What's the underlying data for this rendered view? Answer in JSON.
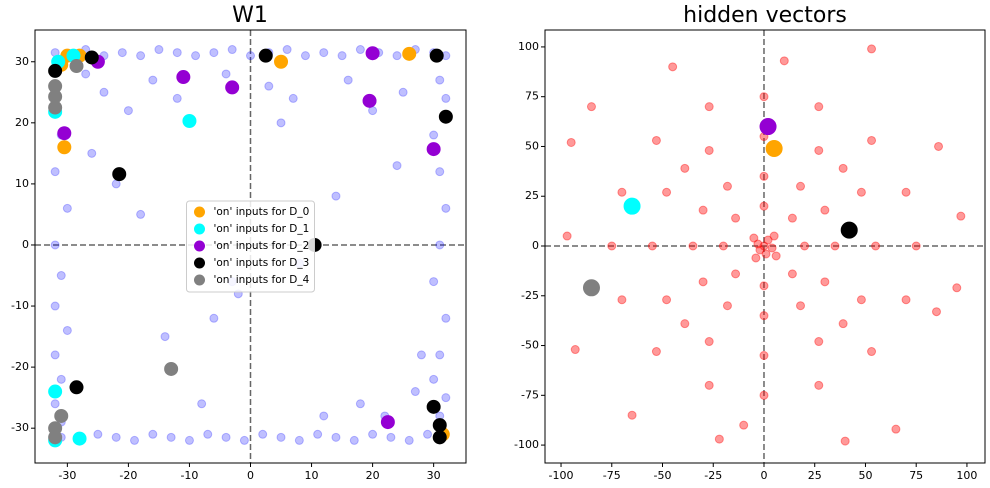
{
  "chart_data": [
    {
      "type": "scatter",
      "title": "W1",
      "xlim": [
        -35.3,
        35.3
      ],
      "ylim": [
        -35.7,
        35.2
      ],
      "xticks": [
        -30,
        -20,
        -10,
        0,
        10,
        20,
        30
      ],
      "yticks": [
        -30,
        -20,
        -10,
        0,
        10,
        20,
        30
      ],
      "zero_lines": true,
      "legend": "center",
      "series": [
        {
          "color": "#0000ff",
          "opacity": 0.25,
          "marker_size": 4,
          "x": [
            -32,
            -30,
            -27,
            -24,
            -21,
            -18,
            -15,
            -12,
            -9,
            -6,
            -3,
            0,
            3,
            6,
            9,
            12,
            15,
            18,
            21,
            24,
            27,
            30,
            32,
            -31,
            -28,
            -25,
            -22,
            -19,
            -16,
            -13,
            -10,
            -7,
            -4,
            -1,
            2,
            5,
            8,
            11,
            14,
            17,
            20,
            23,
            26,
            29,
            31,
            -32,
            -31,
            -32,
            -30,
            -32,
            -31,
            -32,
            -30,
            -32,
            -31,
            -32,
            -31,
            31,
            32,
            30,
            31,
            32,
            31,
            30,
            32,
            31,
            30,
            32,
            31,
            -27,
            -24,
            -20,
            -16,
            -12,
            -8,
            -4,
            -2,
            3,
            7,
            12,
            16,
            20,
            25,
            28,
            -26,
            -18,
            -6,
            8,
            14,
            22,
            27,
            -22,
            -14,
            -3,
            5,
            18,
            24
          ],
          "y": [
            31.5,
            31,
            32,
            31,
            31.5,
            31,
            32,
            31.5,
            31,
            31.5,
            32,
            31,
            31.5,
            32,
            31,
            31.5,
            31,
            32,
            31.5,
            31,
            32,
            31.5,
            31,
            -31.5,
            -32,
            -31,
            -31.5,
            -32,
            -31,
            -31.5,
            -32,
            -31,
            -31.5,
            -32,
            -31,
            -31.5,
            -32,
            -31,
            -31.5,
            -32,
            -31,
            -31.5,
            -32,
            -31,
            -31.5,
            25,
            18,
            12,
            6,
            0,
            -5,
            -10,
            -14,
            -18,
            -22,
            -26,
            -29,
            27,
            24,
            18,
            12,
            6,
            0,
            -6,
            -12,
            -18,
            -22,
            -25,
            -28,
            28,
            25,
            22,
            27,
            24,
            -26,
            28,
            -8,
            26,
            24,
            -28,
            27,
            22,
            25,
            -18,
            15,
            5,
            -12,
            -3,
            8,
            -28,
            -24,
            10,
            -15,
            -6,
            20,
            -26,
            13
          ]
        },
        {
          "name": "'on' inputs for D_0",
          "color": "#ffa500",
          "opacity": 1,
          "marker_size": 6.5,
          "x": [
            -30,
            -28,
            -31,
            -30.5,
            5,
            26,
            31.5
          ],
          "y": [
            31,
            31,
            29.5,
            16,
            30,
            31.3,
            -31
          ]
        },
        {
          "name": "'on' inputs for D_1",
          "color": "#00ffff",
          "opacity": 1,
          "marker_size": 6.5,
          "x": [
            -31.5,
            -29,
            -32,
            -10,
            -32,
            -28,
            -32
          ],
          "y": [
            30,
            31,
            21.8,
            20.3,
            -24,
            -31.7,
            -32
          ]
        },
        {
          "name": "'on' inputs for D_2",
          "color": "#9400d3",
          "opacity": 1,
          "marker_size": 6.5,
          "x": [
            -30.5,
            -25,
            -11,
            -3,
            20,
            19.5,
            30,
            22.5
          ],
          "y": [
            18.3,
            30,
            27.5,
            25.8,
            31.4,
            23.6,
            15.7,
            -29
          ]
        },
        {
          "name": "'on' inputs for D_3",
          "color": "#000000",
          "opacity": 1,
          "marker_size": 6.5,
          "x": [
            -32,
            -26,
            -21.5,
            2.5,
            10.5,
            30.5,
            32,
            -28.5,
            30,
            31,
            31
          ],
          "y": [
            28.5,
            30.7,
            11.6,
            31,
            0,
            31,
            21,
            -23.3,
            -26.5,
            -29.5,
            -31.5
          ]
        },
        {
          "name": "'on' inputs for D_4",
          "color": "#808080",
          "opacity": 1,
          "marker_size": 6.5,
          "x": [
            -28.5,
            -32,
            -32,
            -32,
            -13,
            -31,
            -32,
            -32
          ],
          "y": [
            29.3,
            26,
            24.3,
            22.5,
            -20.3,
            -28,
            -30,
            -31.5
          ]
        }
      ]
    },
    {
      "type": "scatter",
      "title": "hidden vectors",
      "xlim": [
        -107.9,
        108.9
      ],
      "ylim": [
        -109,
        108.5
      ],
      "xticks": [
        -100,
        -75,
        -50,
        -25,
        0,
        25,
        50,
        75,
        100
      ],
      "yticks": [
        -100,
        -75,
        -50,
        -25,
        0,
        25,
        50,
        75,
        100
      ],
      "zero_lines": true,
      "series": [
        {
          "color": "#ff0000",
          "opacity": 0.4,
          "marker_size": 4,
          "x": [
            0,
            2,
            -3,
            1,
            -2,
            4,
            -5,
            5,
            -4,
            6,
            20,
            14,
            0,
            -14,
            -20,
            -14,
            0,
            14,
            35,
            30,
            18,
            0,
            -18,
            -30,
            -35,
            -30,
            -18,
            0,
            18,
            30,
            55,
            48,
            27,
            0,
            -27,
            -48,
            -55,
            -48,
            -27,
            0,
            27,
            48,
            39,
            -39,
            -39,
            39,
            75,
            70,
            53,
            27,
            0,
            -27,
            -53,
            -70,
            -75,
            -70,
            -53,
            -27,
            0,
            27,
            53,
            70,
            97,
            95,
            86,
            53,
            -45,
            -95,
            -97,
            -93,
            -65,
            -22,
            40,
            65,
            85,
            -85,
            10,
            -10
          ],
          "y": [
            0,
            3,
            1,
            -4,
            -2,
            -1,
            4,
            5,
            -6,
            -5,
            0,
            14,
            20,
            14,
            0,
            -14,
            -20,
            -14,
            0,
            18,
            30,
            35,
            30,
            18,
            0,
            -18,
            -30,
            -35,
            -30,
            -18,
            0,
            27,
            48,
            55,
            48,
            27,
            0,
            -27,
            -48,
            -55,
            -48,
            -27,
            39,
            39,
            -39,
            -39,
            0,
            27,
            53,
            70,
            75,
            70,
            53,
            27,
            0,
            -27,
            -53,
            -70,
            -75,
            -70,
            -53,
            -27,
            15,
            -21,
            50,
            99,
            90,
            52,
            5,
            -52,
            -85,
            -97,
            -98,
            -92,
            -33,
            70,
            93,
            -90
          ]
        },
        {
          "color": "#ffa500",
          "opacity": 1,
          "marker_size": 8,
          "x": [
            5
          ],
          "y": [
            49
          ]
        },
        {
          "color": "#00ffff",
          "opacity": 1,
          "marker_size": 8,
          "x": [
            -65
          ],
          "y": [
            20
          ]
        },
        {
          "color": "#9400d3",
          "opacity": 1,
          "marker_size": 8,
          "x": [
            2
          ],
          "y": [
            60
          ]
        },
        {
          "color": "#000000",
          "opacity": 1,
          "marker_size": 8,
          "x": [
            42
          ],
          "y": [
            8
          ]
        },
        {
          "color": "#808080",
          "opacity": 1,
          "marker_size": 8,
          "x": [
            -85
          ],
          "y": [
            -21
          ]
        }
      ]
    }
  ]
}
